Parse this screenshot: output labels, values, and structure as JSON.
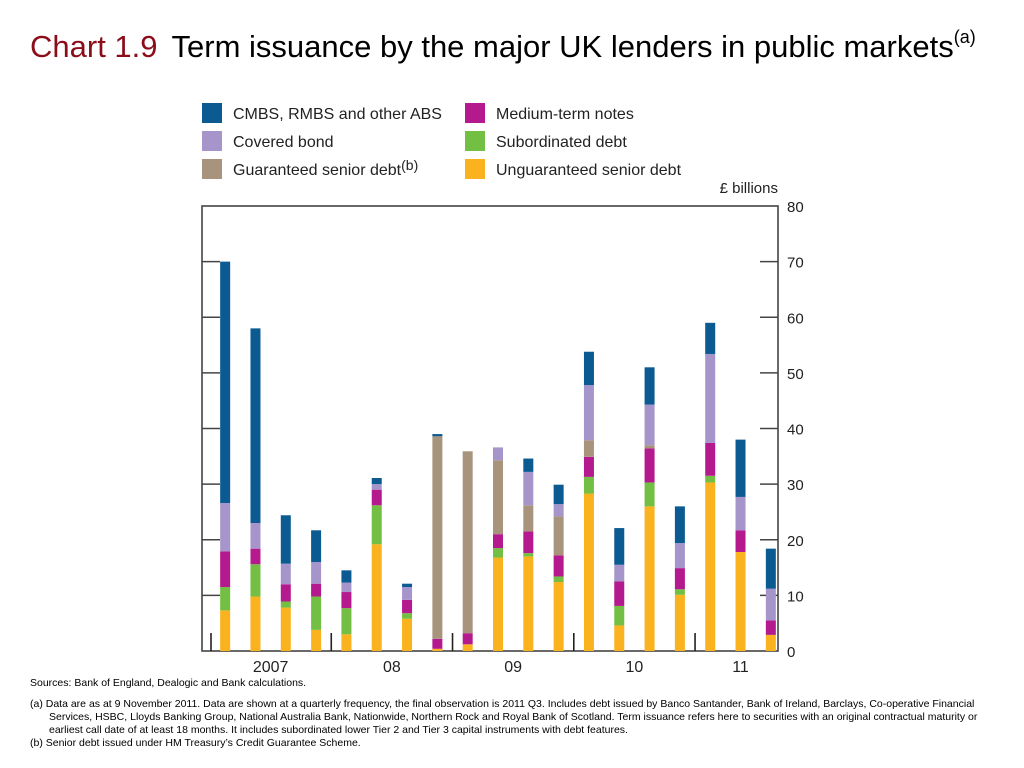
{
  "title": {
    "chart_number": "Chart 1.9",
    "text": "Term issuance by the major UK lenders in public markets",
    "footnote_marker": "(a)"
  },
  "notes": {
    "sources": "Sources:  Bank of England, Dealogic and Bank calculations.",
    "note_a": "(a) Data are as at 9 November 2011.  Data are shown at a quarterly frequency, the final observation is 2011 Q3.  Includes debt issued by Banco Santander, Bank of Ireland, Barclays, Co-operative Financial Services, HSBC, Lloyds Banking Group, National Australia Bank, Nationwide, Northern Rock and Royal Bank of Scotland.  Term issuance refers here to securities with an original contractual maturity or earliest call date of at least 18 months.  It includes subordinated lower Tier 2 and Tier 3 capital instruments with debt features.",
    "note_b": "(b) Senior debt issued under HM Treasury’s Credit Guarantee Scheme."
  },
  "chart_data": {
    "type": "bar",
    "stacked": true,
    "units_label": "£ billions",
    "ylim": [
      0,
      80
    ],
    "yticks": [
      0,
      10,
      20,
      30,
      40,
      50,
      60,
      70,
      80
    ],
    "y_axis_side": "right",
    "grid": false,
    "legend_placement": "top",
    "categories": [
      "2007 Q1",
      "2007 Q2",
      "2007 Q3",
      "2007 Q4",
      "2008 Q1",
      "2008 Q2",
      "2008 Q3",
      "2008 Q4",
      "2009 Q1",
      "2009 Q2",
      "2009 Q3",
      "2009 Q4",
      "2010 Q1",
      "2010 Q2",
      "2010 Q3",
      "2010 Q4",
      "2011 Q1",
      "2011 Q2",
      "2011 Q3"
    ],
    "year_labels": [
      {
        "label": "2007",
        "first": 0,
        "last": 3
      },
      {
        "label": "08",
        "first": 4,
        "last": 7
      },
      {
        "label": "09",
        "first": 8,
        "last": 11
      },
      {
        "label": "10",
        "first": 12,
        "last": 15
      },
      {
        "label": "11",
        "first": 16,
        "last": 18
      }
    ],
    "series": [
      {
        "name": "Unguaranteed senior debt",
        "color": "#fbb21f",
        "values": [
          7.3,
          9.8,
          7.8,
          3.8,
          3.0,
          19.2,
          5.8,
          0.4,
          1.2,
          16.8,
          17.0,
          12.4,
          28.3,
          4.6,
          26.0,
          10.1,
          30.3,
          17.8,
          2.9
        ]
      },
      {
        "name": "Subordinated debt",
        "color": "#72bf44",
        "values": [
          4.2,
          5.8,
          1.1,
          6.0,
          4.7,
          7.0,
          1.0,
          0.0,
          0.0,
          1.7,
          0.6,
          1.0,
          3.0,
          3.5,
          4.3,
          1.0,
          1.2,
          0.0,
          0.0
        ]
      },
      {
        "name": "Medium-term notes",
        "color": "#b5198e",
        "values": [
          6.4,
          2.8,
          3.1,
          2.3,
          2.9,
          2.8,
          2.4,
          1.8,
          2.0,
          2.5,
          3.9,
          3.8,
          3.6,
          4.4,
          6.1,
          3.8,
          5.9,
          3.9,
          2.6
        ]
      },
      {
        "name": "Guaranteed senior debt",
        "color": "#a8947c",
        "values": [
          0.0,
          0.0,
          0.0,
          0.0,
          0.0,
          0.0,
          0.0,
          36.4,
          32.7,
          13.3,
          4.7,
          7.0,
          3.0,
          0.0,
          0.6,
          0.0,
          0.0,
          0.0,
          0.0
        ]
      },
      {
        "name": "Covered bond",
        "color": "#a595cb",
        "values": [
          8.7,
          4.6,
          3.7,
          3.9,
          1.7,
          1.0,
          2.3,
          0.0,
          0.0,
          2.3,
          6.0,
          2.2,
          9.9,
          3.0,
          7.3,
          4.5,
          16.0,
          6.0,
          5.7
        ]
      },
      {
        "name": "CMBS, RMBS and other ABS",
        "color": "#0c5a92",
        "values": [
          43.4,
          35.0,
          8.7,
          5.7,
          2.2,
          1.1,
          0.6,
          0.4,
          0.0,
          0.0,
          2.4,
          3.5,
          6.0,
          6.6,
          6.7,
          6.6,
          5.6,
          10.3,
          7.2
        ]
      }
    ],
    "legend_order": [
      "CMBS, RMBS and other ABS",
      "Covered bond",
      "Guaranteed senior debt",
      "Medium-term notes",
      "Subordinated debt",
      "Unguaranteed senior debt"
    ],
    "legend_markers": {
      "Guaranteed senior debt": "(b)"
    }
  }
}
